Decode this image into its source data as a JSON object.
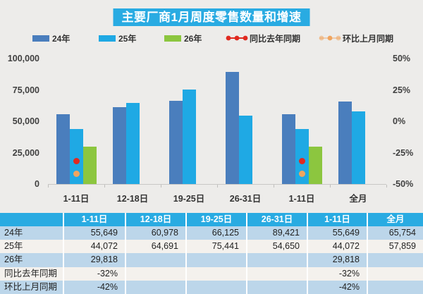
{
  "title": "主要厂商1月周度零售数量和增速",
  "legend": [
    {
      "label": "24年",
      "type": "bar",
      "color": "#4a7ebd"
    },
    {
      "label": "25年",
      "type": "bar",
      "color": "#1fa9e4"
    },
    {
      "label": "26年",
      "type": "bar",
      "color": "#8cc63f"
    },
    {
      "label": "同比去年同期",
      "type": "dot-line",
      "color": "#e02a20"
    },
    {
      "label": "环比上月同期",
      "type": "dot-line-light",
      "color": "#f0a55f"
    }
  ],
  "chart_data": {
    "type": "bar",
    "title": "主要厂商1月周度零售数量和增速",
    "categories": [
      "1-11日",
      "12-18日",
      "19-25日",
      "26-31日",
      "1-11日",
      "全月"
    ],
    "series": [
      {
        "name": "24年",
        "color": "#4a7ebd",
        "values": [
          55649,
          60978,
          66125,
          89421,
          55649,
          65754
        ]
      },
      {
        "name": "25年",
        "color": "#1fa9e4",
        "values": [
          44072,
          64691,
          75441,
          54650,
          44072,
          57859
        ]
      },
      {
        "name": "26年",
        "color": "#8cc63f",
        "values": [
          29818,
          null,
          null,
          null,
          29818,
          null
        ]
      }
    ],
    "markers": [
      {
        "name": "同比去年同期",
        "color": "#e02a20",
        "values_pct": [
          -32,
          null,
          null,
          null,
          -32,
          null
        ]
      },
      {
        "name": "环比上月同期",
        "color": "#f0a55f",
        "values_pct": [
          -42,
          null,
          null,
          null,
          -42,
          null
        ]
      }
    ],
    "left_axis": {
      "label_ticks": [
        "100,000",
        "75,000",
        "50,000",
        "25,000",
        "0"
      ],
      "min": 0,
      "max": 100000,
      "grid": false
    },
    "right_axis": {
      "label_ticks": [
        "50%",
        "25%",
        "0%",
        "-25%",
        "-50%"
      ],
      "min": -50,
      "max": 50
    },
    "legend_position": "top"
  },
  "table": {
    "headers": [
      "",
      "1-11日",
      "12-18日",
      "19-25日",
      "26-31日",
      "1-11日",
      "全月"
    ],
    "rows": [
      {
        "label": "24年",
        "cells": [
          "55,649",
          "60,978",
          "66,125",
          "89,421",
          "55,649",
          "65,754"
        ]
      },
      {
        "label": "25年",
        "cells": [
          "44,072",
          "64,691",
          "75,441",
          "54,650",
          "44,072",
          "57,859"
        ]
      },
      {
        "label": "26年",
        "cells": [
          "29,818",
          "",
          "",
          "",
          "29,818",
          ""
        ]
      },
      {
        "label": "同比去年同期",
        "cells": [
          "-32%",
          "",
          "",
          "",
          "-32%",
          ""
        ]
      },
      {
        "label": "环比上月同期",
        "cells": [
          "-42%",
          "",
          "",
          "",
          "-42%",
          ""
        ]
      }
    ]
  },
  "colors": {
    "title_bg": "#29abe2",
    "page_bg": "#edecea",
    "bar_24": "#4a7ebd",
    "bar_25": "#1fa9e4",
    "bar_26": "#8cc63f",
    "yoy_red": "#e02a20",
    "mom_orange": "#f0a55f",
    "table_header_bg": "#29abe2",
    "table_row_blue": "#bcd6ea",
    "table_row_light": "#f4f1ed"
  }
}
